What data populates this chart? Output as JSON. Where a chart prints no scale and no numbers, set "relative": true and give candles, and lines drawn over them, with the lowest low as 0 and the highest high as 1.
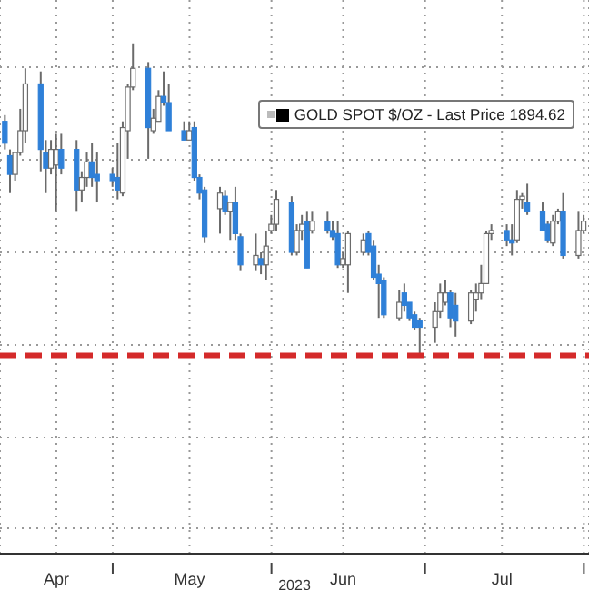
{
  "chart_data": {
    "type": "candlestick",
    "relative": true,
    "xlabel": "2023",
    "grid": true,
    "legend": "top right",
    "xlim": [
      "2023-04-09",
      "2023-08-02"
    ],
    "xticks": [
      {
        "value": "2023-04-20",
        "label": "Apr"
      },
      {
        "value": "2023-05-01",
        "label": null
      },
      {
        "value": "2023-05-16",
        "label": "May"
      },
      {
        "value": "2023-06-01",
        "label": null
      },
      {
        "value": "2023-06-15",
        "label": "Jun"
      },
      {
        "value": "2023-07-01",
        "label": null
      },
      {
        "value": "2023-07-16",
        "label": "Jul"
      },
      {
        "value": "2023-08-01",
        "label": null
      }
    ],
    "x": [
      "2023-04-10",
      "2023-04-11",
      "2023-04-12",
      "2023-04-13",
      "2023-04-14",
      "2023-04-17",
      "2023-04-18",
      "2023-04-19",
      "2023-04-20",
      "2023-04-21",
      "2023-04-24",
      "2023-04-25",
      "2023-04-26",
      "2023-04-27",
      "2023-04-28",
      "2023-05-01",
      "2023-05-02",
      "2023-05-03",
      "2023-05-04",
      "2023-05-05",
      "2023-05-08",
      "2023-05-09",
      "2023-05-10",
      "2023-05-11",
      "2023-05-12",
      "2023-05-15",
      "2023-05-16",
      "2023-05-17",
      "2023-05-18",
      "2023-05-19",
      "2023-05-22",
      "2023-05-23",
      "2023-05-24",
      "2023-05-25",
      "2023-05-26",
      "2023-05-29",
      "2023-05-30",
      "2023-05-31",
      "2023-06-01",
      "2023-06-02",
      "2023-06-05",
      "2023-06-06",
      "2023-06-07",
      "2023-06-08",
      "2023-06-09",
      "2023-06-12",
      "2023-06-13",
      "2023-06-14",
      "2023-06-15",
      "2023-06-16",
      "2023-06-19",
      "2023-06-20",
      "2023-06-21",
      "2023-06-22",
      "2023-06-23",
      "2023-06-26",
      "2023-06-27",
      "2023-06-28",
      "2023-06-29",
      "2023-06-30",
      "2023-07-03",
      "2023-07-04",
      "2023-07-05",
      "2023-07-06",
      "2023-07-07",
      "2023-07-10",
      "2023-07-11",
      "2023-07-12",
      "2023-07-13",
      "2023-07-14",
      "2023-07-17",
      "2023-07-18",
      "2023-07-19",
      "2023-07-20",
      "2023-07-21",
      "2023-07-24",
      "2023-07-25",
      "2023-07-26",
      "2023-07-27",
      "2023-07-28",
      "2023-07-31",
      "2023-08-01"
    ],
    "ref_lines": [
      {
        "axis": "y",
        "value": 0,
        "color": "#d42a2a",
        "line_style": "dashed"
      }
    ],
    "series": [
      {
        "name": "GOLD SPOT $/OZ - Last Price 1894.62",
        "color": "#000000",
        "ohlc": [
          [
            0.75,
            0.77,
            0.66,
            0.68
          ],
          [
            0.64,
            0.66,
            0.52,
            0.58
          ],
          [
            0.58,
            0.65,
            0.56,
            0.65
          ],
          [
            0.65,
            0.79,
            0.64,
            0.72
          ],
          [
            0.72,
            0.92,
            0.68,
            0.87
          ],
          [
            0.87,
            0.91,
            0.59,
            0.66
          ],
          [
            0.65,
            0.69,
            0.52,
            0.6
          ],
          [
            0.6,
            0.69,
            0.58,
            0.66
          ],
          [
            0.61,
            0.71,
            0.46,
            0.66
          ],
          [
            0.66,
            0.71,
            0.58,
            0.6
          ],
          [
            0.66,
            0.69,
            0.46,
            0.53
          ],
          [
            0.53,
            0.59,
            0.49,
            0.57
          ],
          [
            0.57,
            0.65,
            0.54,
            0.62
          ],
          [
            0.62,
            0.68,
            0.54,
            0.57
          ],
          [
            0.58,
            0.65,
            0.49,
            0.56
          ],
          [
            0.58,
            0.6,
            0.54,
            0.56
          ],
          [
            0.57,
            0.68,
            0.5,
            0.53
          ],
          [
            0.52,
            0.75,
            0.51,
            0.73
          ],
          [
            0.72,
            0.87,
            0.63,
            0.86
          ],
          [
            0.86,
            1,
            0.85,
            0.92
          ],
          [
            0.92,
            0.94,
            0.63,
            0.73
          ],
          [
            0.72,
            0.79,
            0.71,
            0.76
          ],
          [
            0.75,
            0.85,
            0.75,
            0.83
          ],
          [
            0.83,
            0.91,
            0.8,
            0.81
          ],
          [
            0.81,
            0.87,
            0.72,
            0.72
          ],
          [
            0.72,
            0.75,
            0.69,
            0.69
          ],
          [
            0.69,
            0.75,
            0.69,
            0.72
          ],
          [
            0.73,
            0.75,
            0.56,
            0.57
          ],
          [
            0.57,
            0.58,
            0.5,
            0.52
          ],
          [
            0.53,
            0.54,
            0.36,
            0.38
          ],
          [
            0.47,
            0.54,
            0.39,
            0.52
          ],
          [
            0.51,
            0.53,
            0.45,
            0.46
          ],
          [
            0.46,
            0.49,
            0.37,
            0.49
          ],
          [
            0.49,
            0.54,
            0.37,
            0.39
          ],
          [
            0.38,
            0.39,
            0.27,
            0.29
          ],
          [
            0.29,
            0.39,
            0.27,
            0.32
          ],
          [
            0.31,
            0.33,
            0.26,
            0.29
          ],
          [
            0.29,
            0.4,
            0.24,
            0.35
          ],
          [
            0.4,
            0.45,
            0.39,
            0.42
          ],
          [
            0.42,
            0.53,
            0.4,
            0.5
          ],
          [
            0.49,
            0.51,
            0.32,
            0.33
          ],
          [
            0.33,
            0.42,
            0.32,
            0.4
          ],
          [
            0.4,
            0.45,
            0.37,
            0.42
          ],
          [
            0.43,
            0.46,
            0.28,
            0.28
          ],
          [
            0.4,
            0.46,
            0.39,
            0.43
          ],
          [
            0.43,
            0.46,
            0.39,
            0.4
          ],
          [
            0.4,
            0.43,
            0.37,
            0.38
          ],
          [
            0.39,
            0.43,
            0.28,
            0.29
          ],
          [
            0.29,
            0.33,
            0.28,
            0.31
          ],
          [
            0.29,
            0.4,
            0.2,
            0.39
          ],
          [
            0.33,
            0.39,
            0.32,
            0.37
          ],
          [
            0.39,
            0.4,
            0.32,
            0.33
          ],
          [
            0.35,
            0.37,
            0.24,
            0.25
          ],
          [
            0.26,
            0.29,
            0.12,
            0.23
          ],
          [
            0.24,
            0.25,
            0.12,
            0.13
          ],
          [
            0.12,
            0.21,
            0.11,
            0.17
          ],
          [
            0.2,
            0.23,
            0.14,
            0.16
          ],
          [
            0.17,
            0.17,
            0.11,
            0.12
          ],
          [
            0.13,
            0.14,
            0.08,
            0.09
          ],
          [
            0.11,
            0.12,
            0,
            0.09
          ],
          [
            0.09,
            0.17,
            0.04,
            0.14
          ],
          [
            0.14,
            0.23,
            0.12,
            0.2
          ],
          [
            0.17,
            0.24,
            0.16,
            0.2
          ],
          [
            0.2,
            0.21,
            0.09,
            0.12
          ],
          [
            0.16,
            0.2,
            0.06,
            0.11
          ],
          [
            0.11,
            0.21,
            0.1,
            0.2
          ],
          [
            0.18,
            0.23,
            0.14,
            0.2
          ],
          [
            0.2,
            0.29,
            0.18,
            0.23
          ],
          [
            0.23,
            0.4,
            0.23,
            0.39
          ],
          [
            0.39,
            0.42,
            0.37,
            0.4
          ],
          [
            0.4,
            0.42,
            0.35,
            0.37
          ],
          [
            0.37,
            0.42,
            0.32,
            0.36
          ],
          [
            0.37,
            0.53,
            0.36,
            0.5
          ],
          [
            0.5,
            0.52,
            0.47,
            0.51
          ],
          [
            0.49,
            0.55,
            0.45,
            0.46
          ],
          [
            0.46,
            0.49,
            0.4,
            0.4
          ],
          [
            0.42,
            0.43,
            0.36,
            0.37
          ],
          [
            0.36,
            0.45,
            0.35,
            0.43
          ],
          [
            0.43,
            0.47,
            0.42,
            0.46
          ],
          [
            0.46,
            0.52,
            0.31,
            0.32
          ],
          [
            0.32,
            0.46,
            0.31,
            0.4
          ],
          [
            0.4,
            0.45,
            0.39,
            0.43
          ]
        ],
        "colors": [
          "#2f80d8",
          "#2f80d8",
          "#ffffff",
          "#ffffff",
          "#ffffff",
          "#2f80d8",
          "#2f80d8",
          "#ffffff",
          "#ffffff",
          "#2f80d8",
          "#2f80d8",
          "#ffffff",
          "#ffffff",
          "#2f80d8",
          "#2f80d8",
          "#2f80d8",
          "#2f80d8",
          "#ffffff",
          "#ffffff",
          "#ffffff",
          "#2f80d8",
          "#ffffff",
          "#ffffff",
          "#2f80d8",
          "#2f80d8",
          "#2f80d8",
          "#ffffff",
          "#2f80d8",
          "#2f80d8",
          "#2f80d8",
          "#ffffff",
          "#2f80d8",
          "#ffffff",
          "#2f80d8",
          "#2f80d8",
          "#ffffff",
          "#2f80d8",
          "#ffffff",
          "#ffffff",
          "#ffffff",
          "#2f80d8",
          "#ffffff",
          "#ffffff",
          "#2f80d8",
          "#ffffff",
          "#2f80d8",
          "#2f80d8",
          "#2f80d8",
          "#ffffff",
          "#ffffff",
          "#ffffff",
          "#2f80d8",
          "#2f80d8",
          "#2f80d8",
          "#2f80d8",
          "#ffffff",
          "#2f80d8",
          "#2f80d8",
          "#2f80d8",
          "#2f80d8",
          "#ffffff",
          "#ffffff",
          "#ffffff",
          "#2f80d8",
          "#2f80d8",
          "#ffffff",
          "#ffffff",
          "#ffffff",
          "#ffffff",
          "#ffffff",
          "#2f80d8",
          "#2f80d8",
          "#ffffff",
          "#ffffff",
          "#2f80d8",
          "#2f80d8",
          "#2f80d8",
          "#ffffff",
          "#ffffff",
          "#2f80d8",
          "#ffffff",
          "#ffffff"
        ]
      }
    ]
  }
}
